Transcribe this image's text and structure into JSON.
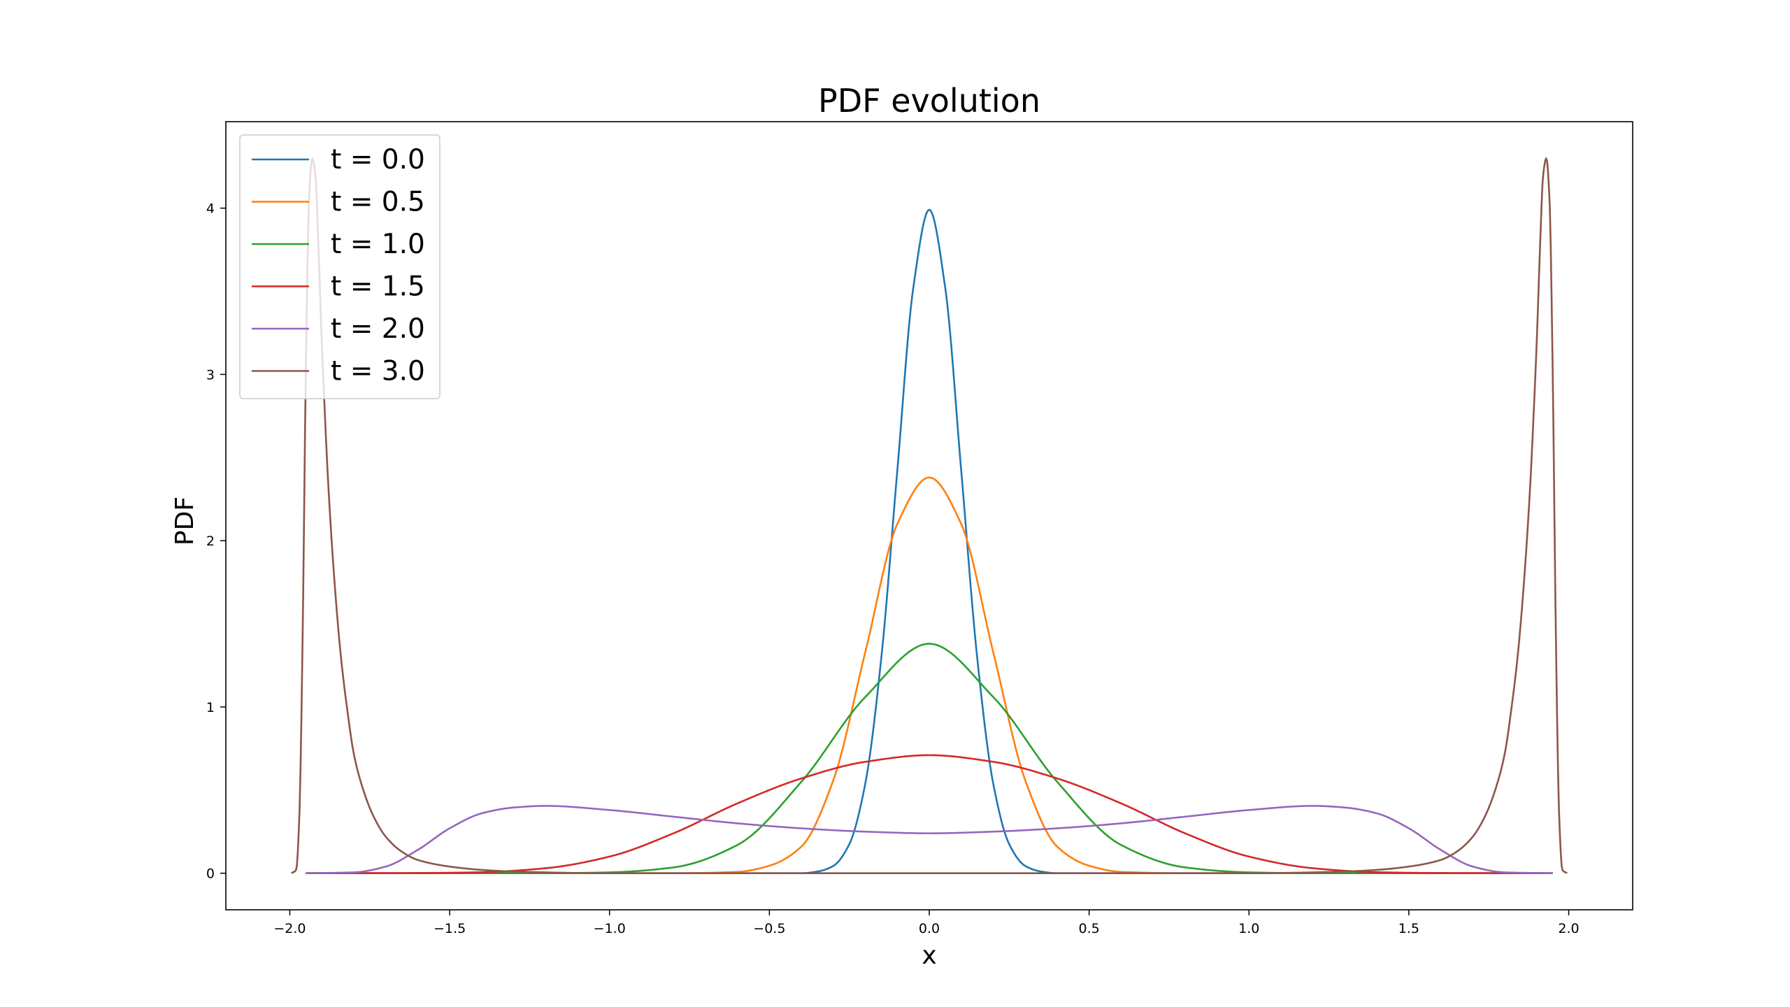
{
  "chart_data": {
    "type": "line",
    "title": "PDF evolution",
    "xlabel": "x",
    "ylabel": "PDF",
    "xlim": [
      -2.2,
      2.2
    ],
    "ylim": [
      -0.22,
      4.52
    ],
    "x_ticks": [
      -2.0,
      -1.5,
      -1.0,
      -0.5,
      0.0,
      0.5,
      1.0,
      1.5,
      2.0
    ],
    "x_tick_labels": [
      "−2.0",
      "−1.5",
      "−1.0",
      "−0.5",
      "0.0",
      "0.5",
      "1.0",
      "1.5",
      "2.0"
    ],
    "y_ticks": [
      0,
      1,
      2,
      3,
      4
    ],
    "y_tick_labels": [
      "0",
      "1",
      "2",
      "3",
      "4"
    ],
    "grid": false,
    "legend_position": "top-left",
    "series": [
      {
        "name": "t = 0.0",
        "color": "#1f77b4",
        "x": [
          -1.95,
          -0.5,
          -0.4,
          -0.35,
          -0.3,
          -0.25,
          -0.2,
          -0.15,
          -0.1,
          -0.05,
          0.0,
          0.05,
          0.1,
          0.15,
          0.2,
          0.25,
          0.3,
          0.35,
          0.4,
          0.5,
          1.95
        ],
        "y": [
          0.0,
          0.0,
          0.0,
          0.01,
          0.044,
          0.175,
          0.54,
          1.295,
          2.42,
          3.52,
          3.99,
          3.52,
          2.42,
          1.295,
          0.54,
          0.175,
          0.044,
          0.01,
          0.0,
          0.0,
          0.0
        ]
      },
      {
        "name": "t = 0.5",
        "color": "#ff7f0e",
        "x": [
          -1.95,
          -0.8,
          -0.6,
          -0.5,
          -0.4,
          -0.3,
          -0.2,
          -0.1,
          0.0,
          0.1,
          0.2,
          0.3,
          0.4,
          0.5,
          0.6,
          0.8,
          1.95
        ],
        "y": [
          0.0,
          0.0,
          0.008,
          0.045,
          0.16,
          0.56,
          1.33,
          2.1,
          2.38,
          2.1,
          1.33,
          0.56,
          0.16,
          0.045,
          0.008,
          0.0,
          0.0
        ],
        "note": "peak value read as approx 2.38"
      },
      {
        "name": "t = 1.0",
        "color": "#2ca02c",
        "x": [
          -1.95,
          -1.2,
          -1.0,
          -0.8,
          -0.6,
          -0.4,
          -0.2,
          0.0,
          0.2,
          0.4,
          0.6,
          0.8,
          1.0,
          1.2,
          1.95
        ],
        "y": [
          0.0,
          0.0,
          0.005,
          0.035,
          0.17,
          0.55,
          1.06,
          1.38,
          1.06,
          0.55,
          0.17,
          0.035,
          0.005,
          0.0,
          0.0
        ]
      },
      {
        "name": "t = 1.5",
        "color": "#d62728",
        "x": [
          -1.95,
          -1.6,
          -1.4,
          -1.2,
          -1.0,
          -0.8,
          -0.6,
          -0.4,
          -0.2,
          0.0,
          0.2,
          0.4,
          0.6,
          0.8,
          1.0,
          1.2,
          1.4,
          1.6,
          1.95
        ],
        "y": [
          0.0,
          0.001,
          0.006,
          0.03,
          0.1,
          0.24,
          0.42,
          0.57,
          0.67,
          0.71,
          0.67,
          0.57,
          0.42,
          0.24,
          0.1,
          0.03,
          0.006,
          0.001,
          0.0
        ]
      },
      {
        "name": "t = 2.0",
        "color": "#9467bd",
        "x": [
          -1.95,
          -1.8,
          -1.7,
          -1.6,
          -1.5,
          -1.4,
          -1.3,
          -1.2,
          -1.0,
          -0.8,
          -0.6,
          -0.4,
          -0.2,
          0.0,
          0.2,
          0.4,
          0.6,
          0.8,
          1.0,
          1.2,
          1.3,
          1.4,
          1.5,
          1.6,
          1.7,
          1.8,
          1.95
        ],
        "y": [
          0.0,
          0.005,
          0.04,
          0.14,
          0.27,
          0.36,
          0.395,
          0.405,
          0.38,
          0.34,
          0.3,
          0.27,
          0.25,
          0.24,
          0.25,
          0.27,
          0.3,
          0.34,
          0.38,
          0.405,
          0.395,
          0.36,
          0.27,
          0.14,
          0.04,
          0.005,
          0.0
        ]
      },
      {
        "name": "t = 3.0",
        "color": "#8c564b",
        "x": [
          -1.995,
          -1.98,
          -1.97,
          -1.96,
          -1.95,
          -1.94,
          -1.93,
          -1.92,
          -1.91,
          -1.9,
          -1.89,
          -1.88,
          -1.86,
          -1.84,
          -1.82,
          -1.8,
          -1.77,
          -1.74,
          -1.7,
          -1.65,
          -1.6,
          -1.5,
          -1.4,
          -1.3,
          -1.0,
          0.0,
          1.0,
          1.3,
          1.4,
          1.5,
          1.6,
          1.65,
          1.7,
          1.74,
          1.77,
          1.8,
          1.82,
          1.84,
          1.86,
          1.88,
          1.89,
          1.9,
          1.91,
          1.92,
          1.93,
          1.94,
          1.95,
          1.96,
          1.97,
          1.98,
          1.995
        ],
        "y": [
          0.0,
          0.02,
          0.35,
          1.4,
          3.0,
          4.05,
          4.3,
          4.2,
          3.75,
          3.2,
          2.75,
          2.35,
          1.75,
          1.3,
          0.98,
          0.72,
          0.5,
          0.35,
          0.22,
          0.13,
          0.08,
          0.04,
          0.02,
          0.01,
          0.0,
          0.0,
          0.0,
          0.01,
          0.02,
          0.04,
          0.08,
          0.13,
          0.22,
          0.35,
          0.5,
          0.72,
          0.98,
          1.3,
          1.75,
          2.35,
          2.75,
          3.2,
          3.75,
          4.2,
          4.3,
          4.05,
          3.0,
          1.4,
          0.35,
          0.02,
          0.0
        ]
      }
    ]
  }
}
